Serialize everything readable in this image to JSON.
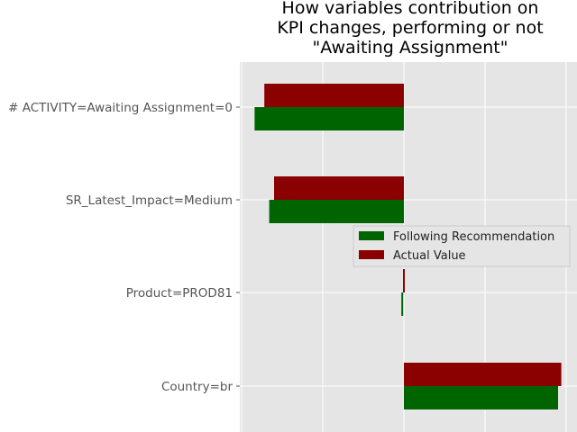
{
  "chart_data": {
    "type": "bar",
    "orientation": "horizontal",
    "title_lines": [
      "How variables contribution on",
      "KPI changes, performing or not",
      "\"Awaiting Assignment\""
    ],
    "categories": [
      "# ACTIVITY=Awaiting Assignment=0",
      "SR_Latest_Impact=Medium",
      "Product=PROD81",
      "Country=br"
    ],
    "series": [
      {
        "name": "Following Recommendation",
        "color": "#006400",
        "values": [
          -0.92,
          -0.83,
          -0.01,
          0.95
        ]
      },
      {
        "name": "Actual Value",
        "color": "#8b0000",
        "values": [
          -0.86,
          -0.8,
          0.0,
          0.97
        ]
      }
    ],
    "xlim": [
      -1.0,
      1.05
    ],
    "grid": true,
    "legend_position": "right"
  }
}
